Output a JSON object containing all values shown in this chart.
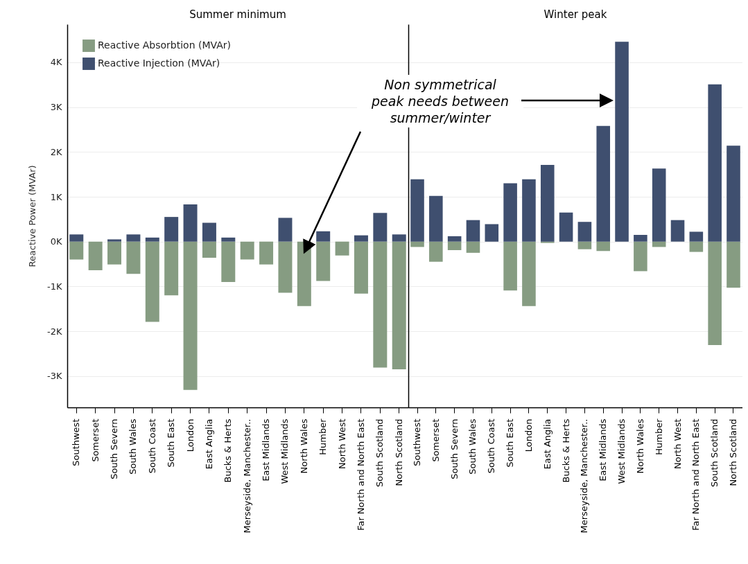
{
  "chart_data": [
    {
      "type": "bar",
      "title": "Summer minimum",
      "ylabel": "Reactive Power (MVAr)",
      "stacked": true,
      "legend": "top left",
      "grid": "y",
      "categories": [
        "Southwest",
        "Somerset",
        "South Severn",
        "South Wales",
        "South Coast",
        "South East",
        "London",
        "East Anglia",
        "Bucks & Herts",
        "Merseyside, Manchester..",
        "East Midlands",
        "West Midlands",
        "North Wales",
        "Humber",
        "North West",
        "Far North and North East",
        "South Scotland",
        "North Scotland"
      ],
      "series": [
        {
          "name": "Reactive Absorbtion (MVAr)",
          "color": "#869c82",
          "values": [
            -400,
            -640,
            -510,
            -720,
            -1790,
            -1200,
            -3310,
            -360,
            -900,
            -400,
            -510,
            -1140,
            -1440,
            -880,
            -310,
            -1160,
            -2810,
            -2850
          ]
        },
        {
          "name": "Reactive Injection (MVAr)",
          "color": "#3f4f6f",
          "values": [
            160,
            0,
            50,
            160,
            90,
            550,
            830,
            420,
            90,
            0,
            0,
            530,
            0,
            230,
            0,
            140,
            640,
            160
          ]
        }
      ],
      "ylim": [
        -3700,
        4850
      ],
      "yticks": [
        {
          "value": -3000,
          "label": "-3K"
        },
        {
          "value": -2000,
          "label": "-2K"
        },
        {
          "value": -1000,
          "label": "-1K"
        },
        {
          "value": 0,
          "label": "0K"
        },
        {
          "value": 1000,
          "label": "1K"
        },
        {
          "value": 2000,
          "label": "2K"
        },
        {
          "value": 3000,
          "label": "3K"
        },
        {
          "value": 4000,
          "label": "4K"
        }
      ],
      "annotations": [
        "Non symmetrical\npeak needs between\nsummer/winter"
      ]
    },
    {
      "type": "bar",
      "title": "Winter peak",
      "stacked": true,
      "grid": "y",
      "tick_labels": "x",
      "categories": [
        "Southwest",
        "Somerset",
        "South Severn",
        "South Wales",
        "South Coast",
        "South East",
        "London",
        "East Anglia",
        "Bucks & Herts",
        "Merseyside, Manchester..",
        "East Midlands",
        "West Midlands",
        "North Wales",
        "Humber",
        "North West",
        "Far North and North East",
        "South Scotland",
        "North Scotland"
      ],
      "series": [
        {
          "color": "#869c82",
          "values": [
            -120,
            -450,
            -190,
            -250,
            0,
            -1090,
            -1440,
            -30,
            0,
            -170,
            -210,
            0,
            -660,
            -120,
            0,
            -230,
            -2310,
            -1030
          ]
        },
        {
          "color": "#3f4f6f",
          "values": [
            1390,
            1020,
            120,
            480,
            390,
            1300,
            1390,
            1710,
            650,
            440,
            2580,
            4460,
            150,
            1630,
            480,
            220,
            3510,
            2140
          ]
        }
      ],
      "ylim": [
        -3700,
        4850
      ],
      "yticks": [
        -3000,
        -2000,
        -1000,
        0,
        1000,
        2000,
        3000,
        4000
      ]
    }
  ]
}
